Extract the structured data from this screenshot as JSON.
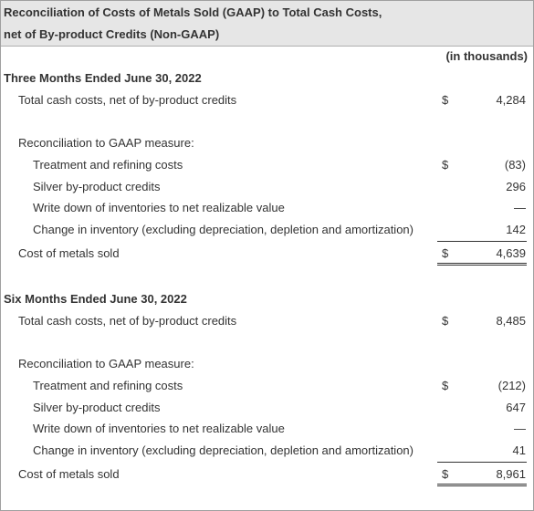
{
  "header": {
    "title_lines": [
      "Reconciliation of Costs of Metals Sold (GAAP) to Total Cash Costs,",
      "net of By-product Credits (Non-GAAP)"
    ],
    "units": "(in thousands)"
  },
  "sections": [
    {
      "heading": "Three Months Ended June 30, 2022",
      "total": {
        "label": "Total cash costs, net of by-product credits",
        "currency": "$",
        "value": "4,284"
      },
      "reconciliation_label": "Reconciliation to GAAP measure:",
      "items": [
        {
          "label": "Treatment and refining costs",
          "currency": "$",
          "value": "(83)"
        },
        {
          "label": "Silver by-product credits",
          "value": "296"
        },
        {
          "label": "Write down of inventories to net realizable value",
          "value": "—"
        },
        {
          "label": "Change in inventory (excluding depreciation, depletion and amortization)",
          "value": "142"
        }
      ],
      "result": {
        "label": "Cost of metals sold",
        "currency": "$",
        "value": "4,639"
      }
    },
    {
      "heading": "Six Months Ended June 30, 2022",
      "total": {
        "label": "Total cash costs, net of by-product credits",
        "currency": "$",
        "value": "8,485"
      },
      "reconciliation_label": "Reconciliation to GAAP measure:",
      "items": [
        {
          "label": "Treatment and refining costs",
          "currency": "$",
          "value": "(212)"
        },
        {
          "label": "Silver by-product credits",
          "value": "647"
        },
        {
          "label": "Write down of inventories to net realizable value",
          "value": "—"
        },
        {
          "label": "Change in inventory (excluding depreciation, depletion and amortization)",
          "value": "41"
        }
      ],
      "result": {
        "label": "Cost of metals sold",
        "currency": "$",
        "value": "8,961"
      }
    }
  ]
}
